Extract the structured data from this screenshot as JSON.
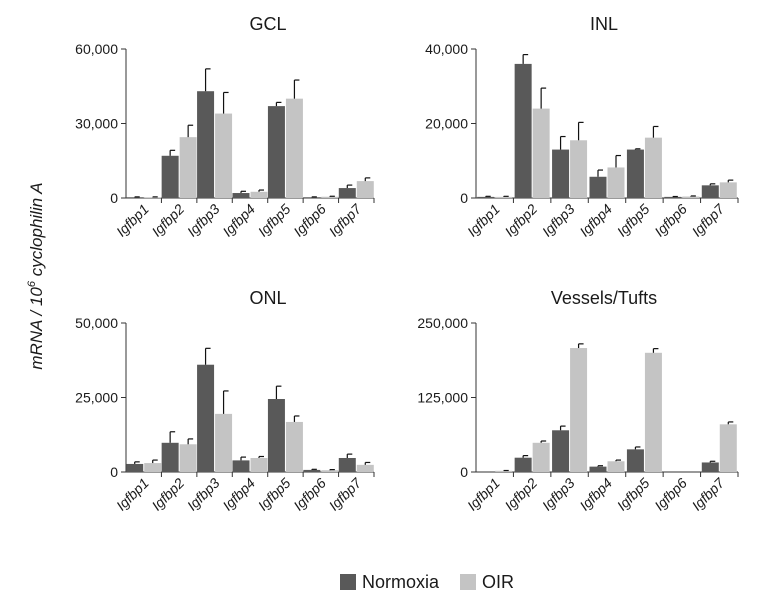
{
  "figure": {
    "ylabel_prefix": "mRNA / 10",
    "ylabel_sup": "6",
    "ylabel_suffix": " cyclophilin A"
  },
  "legend": {
    "items": [
      {
        "label": "Normoxia",
        "color": "#595959"
      },
      {
        "label": "OIR",
        "color": "#c4c4c4"
      }
    ]
  },
  "chart_data": [
    {
      "type": "bar",
      "title": "GCL",
      "categories": [
        "Igfbp1",
        "Igfbp2",
        "Igfbp3",
        "Igfbp4",
        "Igfbp5",
        "Igfbp6",
        "Igfbp7"
      ],
      "ylim": [
        0,
        60000
      ],
      "yticks": [
        "0",
        "30,000",
        "60,000"
      ],
      "ytick_values": [
        0,
        30000,
        60000
      ],
      "series": [
        {
          "name": "Normoxia",
          "values": [
            300,
            17000,
            43000,
            2000,
            37000,
            300,
            4000
          ],
          "errors": [
            150,
            2200,
            9000,
            700,
            1500,
            150,
            1200
          ]
        },
        {
          "name": "OIR",
          "values": [
            300,
            24500,
            34000,
            2500,
            40000,
            500,
            6800
          ],
          "errors": [
            150,
            4800,
            8500,
            700,
            7500,
            200,
            1300
          ]
        }
      ]
    },
    {
      "type": "bar",
      "title": "INL",
      "categories": [
        "Igfbp1",
        "Igfbp2",
        "Igfbp3",
        "Igfbp4",
        "Igfbp5",
        "Igfbp6",
        "Igfbp7"
      ],
      "ylim": [
        0,
        40000
      ],
      "yticks": [
        "0",
        "20,000",
        "40,000"
      ],
      "ytick_values": [
        0,
        20000,
        40000
      ],
      "series": [
        {
          "name": "Normoxia",
          "values": [
            300,
            36000,
            13000,
            5700,
            13000,
            300,
            3400
          ],
          "errors": [
            150,
            2500,
            3500,
            1800,
            200,
            100,
            400
          ]
        },
        {
          "name": "OIR",
          "values": [
            300,
            24000,
            15500,
            8200,
            16200,
            400,
            4200
          ],
          "errors": [
            150,
            5500,
            4800,
            3200,
            3000,
            150,
            600
          ]
        }
      ]
    },
    {
      "type": "bar",
      "title": "ONL",
      "categories": [
        "Igfbp1",
        "Igfbp2",
        "Igfbp3",
        "Igfbp4",
        "Igfbp5",
        "Igfbp6",
        "Igfbp7"
      ],
      "ylim": [
        0,
        50000
      ],
      "yticks": [
        "0",
        "25,000",
        "50,000"
      ],
      "ytick_values": [
        0,
        25000,
        50000
      ],
      "series": [
        {
          "name": "Normoxia",
          "values": [
            2700,
            9800,
            36000,
            3900,
            24500,
            700,
            4700
          ],
          "errors": [
            700,
            3700,
            5500,
            1100,
            4300,
            200,
            1300
          ]
        },
        {
          "name": "OIR",
          "values": [
            3000,
            9300,
            19500,
            4700,
            16800,
            600,
            2400
          ],
          "errors": [
            1000,
            1800,
            7700,
            500,
            2000,
            200,
            800
          ]
        }
      ]
    },
    {
      "type": "bar",
      "title": "Vessels/Tufts",
      "categories": [
        "Igfbp1",
        "Igfbp2",
        "Igfbp3",
        "Igfbp4",
        "Igfbp5",
        "Igfbp6",
        "Igfbp7"
      ],
      "ylim": [
        0,
        250000
      ],
      "yticks": [
        "0",
        "125,000",
        "250,000"
      ],
      "ytick_values": [
        0,
        125000,
        250000
      ],
      "series": [
        {
          "name": "Normoxia",
          "values": [
            0,
            24000,
            70000,
            9000,
            38000,
            0,
            16000
          ],
          "errors": [
            0,
            3500,
            7000,
            1500,
            4000,
            0,
            2000
          ]
        },
        {
          "name": "OIR",
          "values": [
            2000,
            49000,
            208000,
            18000,
            200000,
            0,
            80000
          ],
          "errors": [
            500,
            3000,
            7000,
            2000,
            7000,
            0,
            4000
          ]
        }
      ]
    }
  ]
}
